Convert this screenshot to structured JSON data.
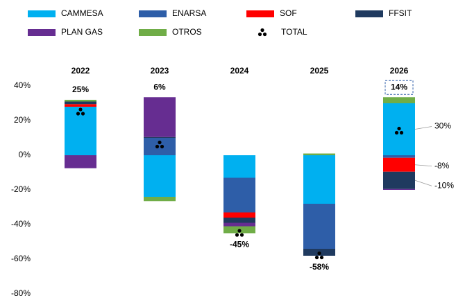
{
  "chart_data": {
    "type": "stacked_bar",
    "categories": [
      "2022",
      "2023",
      "2024",
      "2025",
      "2026"
    ],
    "series": [
      {
        "name": "CAMMESA",
        "color": "#00b0f0",
        "values": [
          28,
          -24,
          -13,
          -28,
          30
        ]
      },
      {
        "name": "ENARSA",
        "color": "#2e5ea8",
        "values": [
          0,
          10,
          -20,
          -26,
          -1.5
        ]
      },
      {
        "name": "SOF",
        "color": "#ff0000",
        "values": [
          1.5,
          0,
          -3,
          0,
          -8
        ]
      },
      {
        "name": "FFSIT",
        "color": "#1f3a5f",
        "values": [
          1.5,
          0.5,
          -3,
          -4,
          -10
        ]
      },
      {
        "name": "PLAN GAS",
        "color": "#662d91",
        "values": [
          -7.5,
          23,
          -2,
          0,
          -0.5
        ]
      },
      {
        "name": "OTROS",
        "color": "#70ad47",
        "values": [
          1,
          -2.5,
          -4,
          1,
          3.5
        ]
      }
    ],
    "total": {
      "name": "TOTAL",
      "color": "#000000",
      "values": [
        25,
        6,
        -45,
        -58,
        14
      ],
      "value_labels": [
        "25%",
        "6%",
        "-45%",
        "-58%",
        "14%"
      ]
    },
    "annotations": [
      "30%",
      "-8%",
      "-10%"
    ],
    "ylim": [
      -80,
      40
    ],
    "yticks": [
      {
        "value": 40,
        "label": "40%"
      },
      {
        "value": 20,
        "label": "20%"
      },
      {
        "value": 0,
        "label": "0%"
      },
      {
        "value": -20,
        "label": "-20%"
      },
      {
        "value": -40,
        "label": "-40%"
      },
      {
        "value": -60,
        "label": "-60%"
      },
      {
        "value": -80,
        "label": "-80%"
      }
    ],
    "grid": false
  }
}
